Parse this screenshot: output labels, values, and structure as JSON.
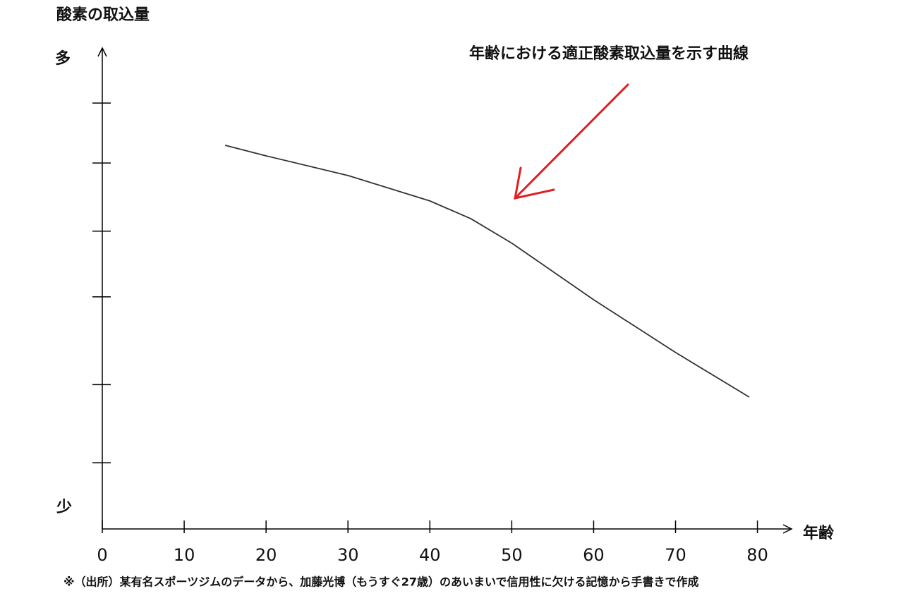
{
  "chart_data": {
    "type": "line",
    "title": "酸素の取込量",
    "y_top_label": "多",
    "y_bottom_label": "少",
    "x_label": "年齢",
    "annotation": "年齢における適正酸素取込量を示す曲線",
    "annotation_color": "#e02020",
    "footnote": "※（出所）某有名スポーツジムのデータから、加藤光博（もうすぐ27歳）のあいまいで信用性に欠ける記憶から手書きで作成",
    "x": [
      15,
      20,
      30,
      40,
      45,
      50,
      60,
      70,
      79
    ],
    "series": [
      {
        "color": "#333333",
        "values": [
          80,
          77.8,
          73.7,
          68.4,
          64.7,
          59.6,
          47.8,
          36.8,
          27.5
        ]
      }
    ],
    "xlim": [
      0,
      84
    ],
    "xticks": [
      0,
      10,
      20,
      30,
      40,
      50,
      60,
      70,
      80
    ],
    "ylim": [
      0,
      100
    ],
    "yticks": [
      13.8,
      30.1,
      48.4,
      62.1,
      76.3,
      88.8
    ]
  }
}
